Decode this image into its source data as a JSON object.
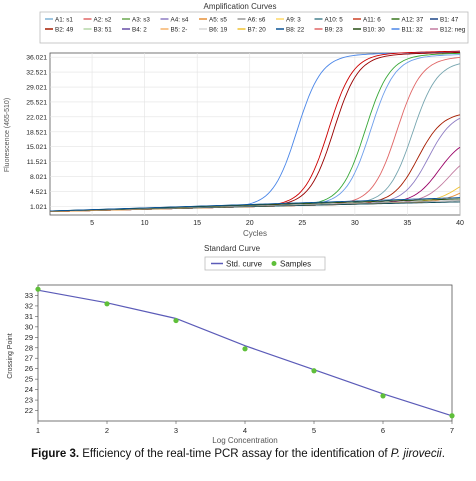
{
  "chart_data": [
    {
      "type": "line",
      "title": "Amplification Curves",
      "xlabel": "Cycles",
      "ylabel": "Fluorescence (465-510)",
      "xlim": [
        1,
        40
      ],
      "ylim": [
        -1,
        37
      ],
      "x_ticks": [
        5,
        10,
        15,
        20,
        25,
        30,
        35,
        40
      ],
      "y_ticks": [
        "36.021",
        "32.521",
        "29.021",
        "25.521",
        "22.021",
        "18.521",
        "15.021",
        "11.521",
        "8.021",
        "4.521",
        "1.021"
      ],
      "y_tick_values": [
        36.021,
        32.521,
        29.021,
        25.521,
        22.021,
        18.521,
        15.021,
        11.521,
        8.021,
        4.521,
        1.021
      ],
      "grid": true,
      "legend_position": "top",
      "legend_items": [
        {
          "label": "A1: s1",
          "color": "#7fb3d5"
        },
        {
          "label": "A2: s2",
          "color": "#e06666"
        },
        {
          "label": "A3: s3",
          "color": "#6aa84f"
        },
        {
          "label": "A4: s4",
          "color": "#8e7cc3"
        },
        {
          "label": "A5: s5",
          "color": "#e69138"
        },
        {
          "label": "A6: s6",
          "color": "#999999"
        },
        {
          "label": "A9: 3",
          "color": "#ffd966"
        },
        {
          "label": "A10: 5",
          "color": "#45818e"
        },
        {
          "label": "A11: 6",
          "color": "#cc4125"
        },
        {
          "label": "A12: 37",
          "color": "#38761d"
        },
        {
          "label": "B1: 47",
          "color": "#1c4587"
        },
        {
          "label": "B2: 49",
          "color": "#a61c00"
        },
        {
          "label": "B3: 51",
          "color": "#b6d7a8"
        },
        {
          "label": "B4: 2",
          "color": "#674ea7"
        },
        {
          "label": "B5: 2-",
          "color": "#f6b26b"
        },
        {
          "label": "B6: 19",
          "color": "#d9d9d9"
        },
        {
          "label": "B7: 20",
          "color": "#f1c232"
        },
        {
          "label": "B8: 22",
          "color": "#0b5394"
        },
        {
          "label": "B9: 23",
          "color": "#e06666"
        },
        {
          "label": "B10: 30",
          "color": "#274e13"
        },
        {
          "label": "B11: 32",
          "color": "#4a86e8"
        },
        {
          "label": "B12: neg",
          "color": "#c27ba0"
        }
      ],
      "series": [
        {
          "color": "#4a86e8",
          "ct": 24.5,
          "plateau": 35.2
        },
        {
          "color": "#cc0000",
          "ct": 27.5,
          "plateau": 35.3
        },
        {
          "color": "#990000",
          "ct": 28.0,
          "plateau": 35.0
        },
        {
          "color": "#38a838",
          "ct": 31.0,
          "plateau": 34.8
        },
        {
          "color": "#6d9eeb",
          "ct": 31.5,
          "plateau": 34.5
        },
        {
          "color": "#e06666",
          "ct": 34.0,
          "plateau": 34.0
        },
        {
          "color": "#76a5af",
          "ct": 35.5,
          "plateau": 33.0
        },
        {
          "color": "#a61c00",
          "ct": 36.0,
          "plateau": 21.0
        },
        {
          "color": "#8e7cc3",
          "ct": 37.0,
          "plateau": 21.0
        },
        {
          "color": "#990066",
          "ct": 38.0,
          "plateau": 15.0
        },
        {
          "color": "#c27ba0",
          "ct": 39.0,
          "plateau": 12.0
        },
        {
          "color": "#f1c232",
          "ct": 40.0,
          "plateau": 7.0
        },
        {
          "color": "#e69138",
          "ct": 40.5,
          "plateau": 5.0
        },
        {
          "color": "#134f5c",
          "flat": 1.0
        },
        {
          "color": "#999999",
          "flat": 1.3
        },
        {
          "color": "#274e13",
          "flat": 1.7
        },
        {
          "color": "#0b5394",
          "flat": 2.0
        }
      ]
    },
    {
      "type": "scatter",
      "title": "Standard Curve",
      "xlabel": "Log Concentration",
      "ylabel": "Crossing Point",
      "xlim": [
        1,
        7
      ],
      "ylim": [
        21,
        34
      ],
      "x_ticks": [
        1,
        2,
        3,
        4,
        5,
        6,
        7
      ],
      "y_ticks": [
        22,
        23,
        24,
        25,
        26,
        27,
        28,
        29,
        30,
        31,
        32,
        33
      ],
      "grid": false,
      "legend_position": "top",
      "series": [
        {
          "name": "Std. curve",
          "color": "#5b5bb8",
          "x": [
            1,
            2,
            3,
            4,
            5,
            6,
            7
          ],
          "y": [
            33.5,
            32.3,
            30.8,
            28.2,
            25.9,
            23.6,
            21.5
          ]
        },
        {
          "name": "Samples",
          "color": "#5fbf3a",
          "x": [
            1,
            2,
            3,
            4,
            5,
            6,
            7
          ],
          "y": [
            33.6,
            32.2,
            30.6,
            27.9,
            25.8,
            23.4,
            21.5
          ]
        }
      ]
    }
  ],
  "caption": {
    "label": "Figure 3.",
    "text": " Efficiency of the real-time PCR assay for the identification of ",
    "species": "P. jirovecii",
    "end": "."
  }
}
